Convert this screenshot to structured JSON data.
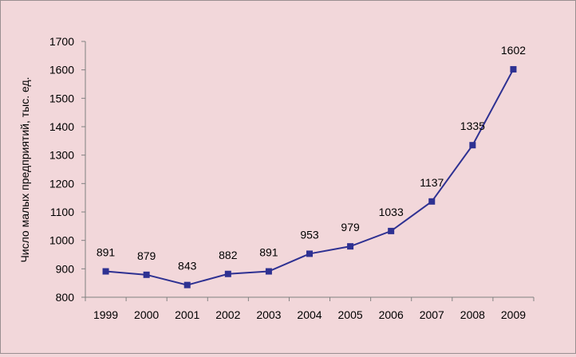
{
  "chart_data": {
    "type": "line",
    "title": "",
    "xlabel": "",
    "ylabel": "Число малых предприятий, тыс. ед.",
    "categories": [
      "1999",
      "2000",
      "2001",
      "2002",
      "2003",
      "2004",
      "2005",
      "2006",
      "2007",
      "2008",
      "2009"
    ],
    "series": [
      {
        "values": [
          891,
          879,
          843,
          882,
          891,
          953,
          979,
          1033,
          1137,
          1335,
          1602
        ],
        "data_labels": [
          "891",
          "879",
          "843",
          "882",
          "891",
          "953",
          "979",
          "1033",
          "1137",
          "1335",
          "1602"
        ]
      }
    ],
    "ylim": [
      800,
      1700
    ],
    "yticks": [
      "800",
      "900",
      "1000",
      "1100",
      "1200",
      "1300",
      "1400",
      "1500",
      "1600",
      "1700"
    ],
    "grid": false,
    "legend": "none",
    "colors": {
      "series": "#2e3192",
      "background": "#f2d7da",
      "axis": "#808080"
    }
  }
}
